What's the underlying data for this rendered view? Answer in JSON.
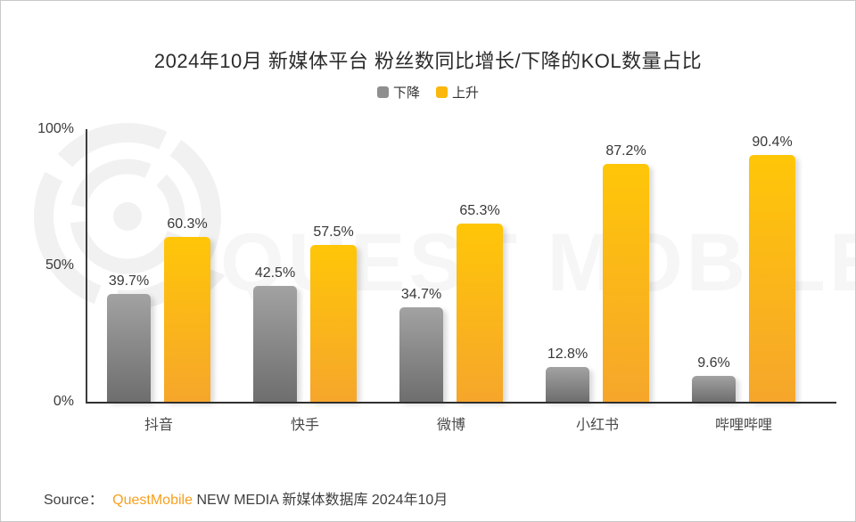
{
  "title": "2024年10月 新媒体平台 粉丝数同比增长/下降的KOL数量占比",
  "watermark": {
    "text": "QUEST MOBILE",
    "logo": "questmobile-rings-logo",
    "text_color": "#f6f6f6",
    "logo_color": "#f1f1f1"
  },
  "chart_data": {
    "type": "bar",
    "title": "2024年10月 新媒体平台 粉丝数同比增长/下降的KOL数量占比",
    "categories": [
      "抖音",
      "快手",
      "微博",
      "小红书",
      "哔哩哔哩"
    ],
    "category_keys": [
      "douyin",
      "kuaishou",
      "weibo",
      "xiaohongshu",
      "bilibili"
    ],
    "series": [
      {
        "key": "down",
        "name": "下降",
        "values": [
          39.7,
          42.5,
          34.7,
          12.8,
          9.6
        ],
        "color_top": "#a2a2a2",
        "color_bottom": "#6e6e6e",
        "swatch": "#8f8f8f"
      },
      {
        "key": "up",
        "name": "上升",
        "values": [
          60.3,
          57.5,
          65.3,
          87.2,
          90.4
        ],
        "color_top": "#ffc608",
        "color_bottom": "#f6a62b",
        "swatch": "#fbb70c"
      }
    ],
    "value_suffix": "%",
    "xlabel": "",
    "ylabel": "",
    "ylim": [
      0,
      100
    ],
    "ytick_values": [
      0,
      50,
      100
    ],
    "ytick_labels": [
      "0%",
      "50%",
      "100%"
    ],
    "grid": false,
    "legend_position": "top"
  },
  "source": {
    "prefix": "Source：",
    "brand": "QuestMobile",
    "brand_color": "#f8a01d",
    "rest": "NEW MEDIA 新媒体数据库 2024年10月"
  }
}
